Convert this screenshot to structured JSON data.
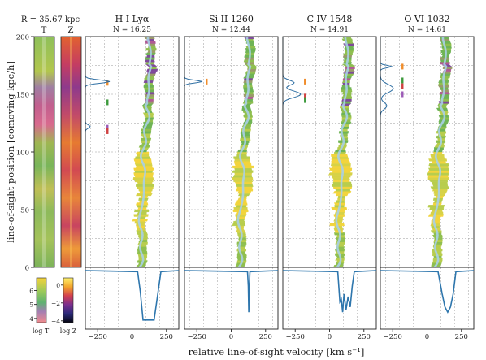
{
  "figure": {
    "radius_label": "R = 35.67 kpc",
    "strip_T_label": "T",
    "strip_Z_label": "Z",
    "ylabel": "line-of-sight position [comoving kpc/h]",
    "xlabel": "relative line-of-sight velocity [km s⁻¹]",
    "y_ticks": [
      "0",
      "50",
      "100",
      "150",
      "200"
    ],
    "x_ticks": [
      "−250",
      "0",
      "250"
    ],
    "colorbar_T": {
      "label": "log T",
      "ticks": [
        "4",
        "5",
        "6"
      ],
      "range": [
        3.7,
        6.9
      ]
    },
    "colorbar_Z": {
      "label": "log Z",
      "ticks": [
        "−4",
        "−2",
        "0"
      ],
      "range": [
        -4.2,
        0.8
      ]
    }
  },
  "panels": [
    {
      "title": "H I Lyα",
      "ncol": "N = 16.25"
    },
    {
      "title": "Si II 1260",
      "ncol": "N = 12.44"
    },
    {
      "title": "C IV 1548",
      "ncol": "N = 14.91"
    },
    {
      "title": "O VI 1032",
      "ncol": "N = 14.61"
    }
  ],
  "chart_data": {
    "type": "line",
    "title": "",
    "xlabel": "relative line-of-sight velocity [km s⁻¹]",
    "ylabel": "line-of-sight position [comoving kpc/h]",
    "xlim": [
      -340,
      340
    ],
    "ylim": [
      0,
      200
    ],
    "grid": true,
    "series": [
      {
        "name": "H I Lyα",
        "x": [
          -340,
          40,
          60,
          80,
          160,
          190,
          210,
          340
        ],
        "y": [
          1,
          0.98,
          0.6,
          0.05,
          0.05,
          0.6,
          0.98,
          1
        ]
      },
      {
        "name": "Si II 1260",
        "x": [
          -340,
          118,
          124,
          128,
          132,
          136,
          340
        ],
        "y": [
          1,
          0.98,
          0.7,
          0.2,
          0.7,
          0.98,
          1
        ]
      },
      {
        "name": "C IV 1548",
        "x": [
          -340,
          60,
          75,
          85,
          95,
          105,
          120,
          135,
          150,
          165,
          180,
          340
        ],
        "y": [
          1,
          0.98,
          0.4,
          0.45,
          0.2,
          0.55,
          0.25,
          0.5,
          0.3,
          0.7,
          0.98,
          1
        ]
      },
      {
        "name": "O VI 1032",
        "x": [
          -340,
          80,
          110,
          130,
          150,
          170,
          190,
          210,
          340
        ],
        "y": [
          1,
          0.98,
          0.55,
          0.3,
          0.2,
          0.3,
          0.55,
          0.98,
          1
        ]
      }
    ]
  }
}
